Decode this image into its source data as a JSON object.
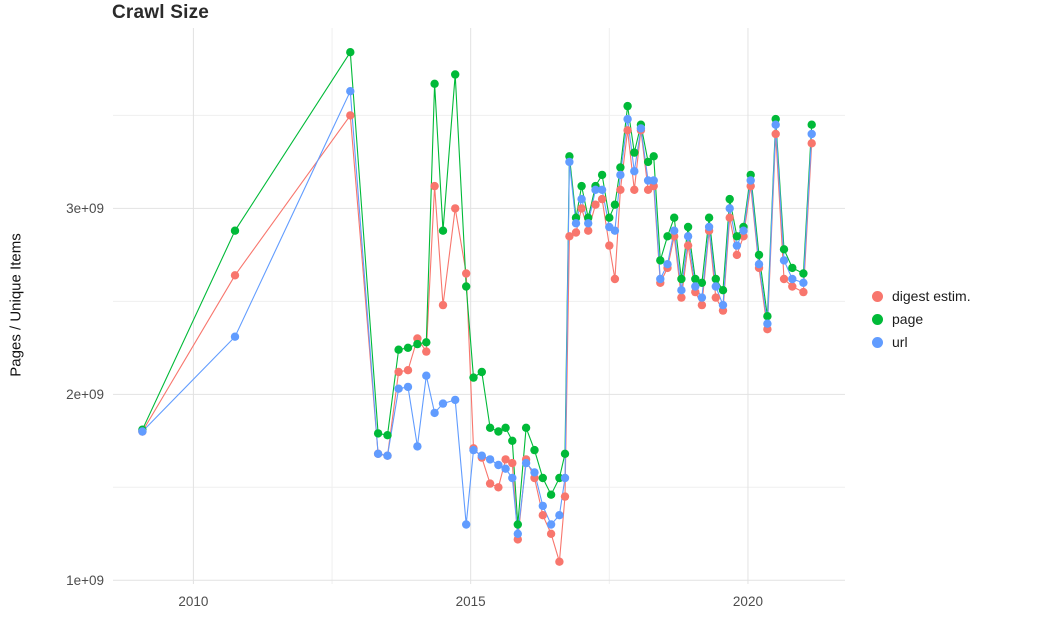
{
  "chart_data": {
    "type": "line",
    "title": "Crawl Size",
    "xlabel": "",
    "ylabel": "Pages / Unique Items",
    "legend_position": "right",
    "grid": true,
    "background": "#ffffff",
    "grid_major_color": "#e2e2e2",
    "grid_minor_color": "#efefef",
    "x_unit": "year",
    "y_values_unit": "pages (multiples of 1e9)",
    "xlim": [
      2008.55,
      2021.75
    ],
    "ylim": [
      0.98,
      3.97
    ],
    "x_ticks": [
      {
        "value": 2010,
        "label": "2010"
      },
      {
        "value": 2015,
        "label": "2015"
      },
      {
        "value": 2020,
        "label": "2020"
      }
    ],
    "y_ticks": [
      {
        "value": 1.0,
        "label": "1e+09"
      },
      {
        "value": 2.0,
        "label": "2e+09"
      },
      {
        "value": 3.0,
        "label": "3e+09"
      }
    ],
    "x": [
      2009.08,
      2010.75,
      2012.83,
      2013.33,
      2013.5,
      2013.7,
      2013.87,
      2014.04,
      2014.2,
      2014.35,
      2014.5,
      2014.72,
      2014.92,
      2015.05,
      2015.2,
      2015.35,
      2015.5,
      2015.63,
      2015.75,
      2015.85,
      2016.0,
      2016.15,
      2016.3,
      2016.45,
      2016.6,
      2016.7,
      2016.78,
      2016.9,
      2017.0,
      2017.12,
      2017.25,
      2017.37,
      2017.5,
      2017.6,
      2017.7,
      2017.83,
      2017.95,
      2018.07,
      2018.2,
      2018.3,
      2018.42,
      2018.55,
      2018.67,
      2018.8,
      2018.92,
      2019.05,
      2019.17,
      2019.3,
      2019.42,
      2019.55,
      2019.67,
      2019.8,
      2019.92,
      2020.05,
      2020.2,
      2020.35,
      2020.5,
      2020.65,
      2020.8,
      2021.0,
      2021.15
    ],
    "series": [
      {
        "name": "digest estim.",
        "color": "#F8766D",
        "values": [
          1.8,
          2.64,
          3.5,
          1.68,
          1.67,
          2.12,
          2.13,
          2.3,
          2.23,
          3.12,
          2.48,
          3.0,
          2.65,
          1.71,
          1.66,
          1.52,
          1.5,
          1.65,
          1.63,
          1.22,
          1.65,
          1.55,
          1.35,
          1.25,
          1.1,
          1.45,
          2.85,
          2.87,
          3.0,
          2.88,
          3.02,
          3.05,
          2.8,
          2.62,
          3.1,
          3.42,
          3.1,
          3.42,
          3.1,
          3.12,
          2.6,
          2.68,
          2.85,
          2.52,
          2.8,
          2.55,
          2.48,
          2.88,
          2.52,
          2.45,
          2.95,
          2.75,
          2.85,
          3.12,
          2.68,
          2.35,
          3.4,
          2.62,
          2.58,
          2.55,
          3.35
        ]
      },
      {
        "name": "page",
        "color": "#00BA38",
        "values": [
          1.81,
          2.88,
          3.84,
          1.79,
          1.78,
          2.24,
          2.25,
          2.27,
          2.28,
          3.67,
          2.88,
          3.72,
          2.58,
          2.09,
          2.12,
          1.82,
          1.8,
          1.82,
          1.75,
          1.3,
          1.82,
          1.7,
          1.55,
          1.46,
          1.55,
          1.68,
          3.28,
          2.95,
          3.12,
          2.95,
          3.12,
          3.18,
          2.95,
          3.02,
          3.22,
          3.55,
          3.3,
          3.45,
          3.25,
          3.28,
          2.72,
          2.85,
          2.95,
          2.62,
          2.9,
          2.62,
          2.6,
          2.95,
          2.62,
          2.56,
          3.05,
          2.85,
          2.9,
          3.18,
          2.75,
          2.42,
          3.48,
          2.78,
          2.68,
          2.65,
          3.45
        ]
      },
      {
        "name": "url",
        "color": "#619CFF",
        "values": [
          1.8,
          2.31,
          3.63,
          1.68,
          1.67,
          2.03,
          2.04,
          1.72,
          2.1,
          1.9,
          1.95,
          1.97,
          1.3,
          1.7,
          1.67,
          1.65,
          1.62,
          1.6,
          1.55,
          1.25,
          1.63,
          1.58,
          1.4,
          1.3,
          1.35,
          1.55,
          3.25,
          2.92,
          3.05,
          2.92,
          3.1,
          3.1,
          2.9,
          2.88,
          3.18,
          3.48,
          3.2,
          3.43,
          3.15,
          3.15,
          2.62,
          2.7,
          2.88,
          2.56,
          2.85,
          2.58,
          2.52,
          2.9,
          2.58,
          2.48,
          3.0,
          2.8,
          2.88,
          3.15,
          2.7,
          2.38,
          3.45,
          2.72,
          2.62,
          2.6,
          3.4
        ]
      }
    ]
  }
}
